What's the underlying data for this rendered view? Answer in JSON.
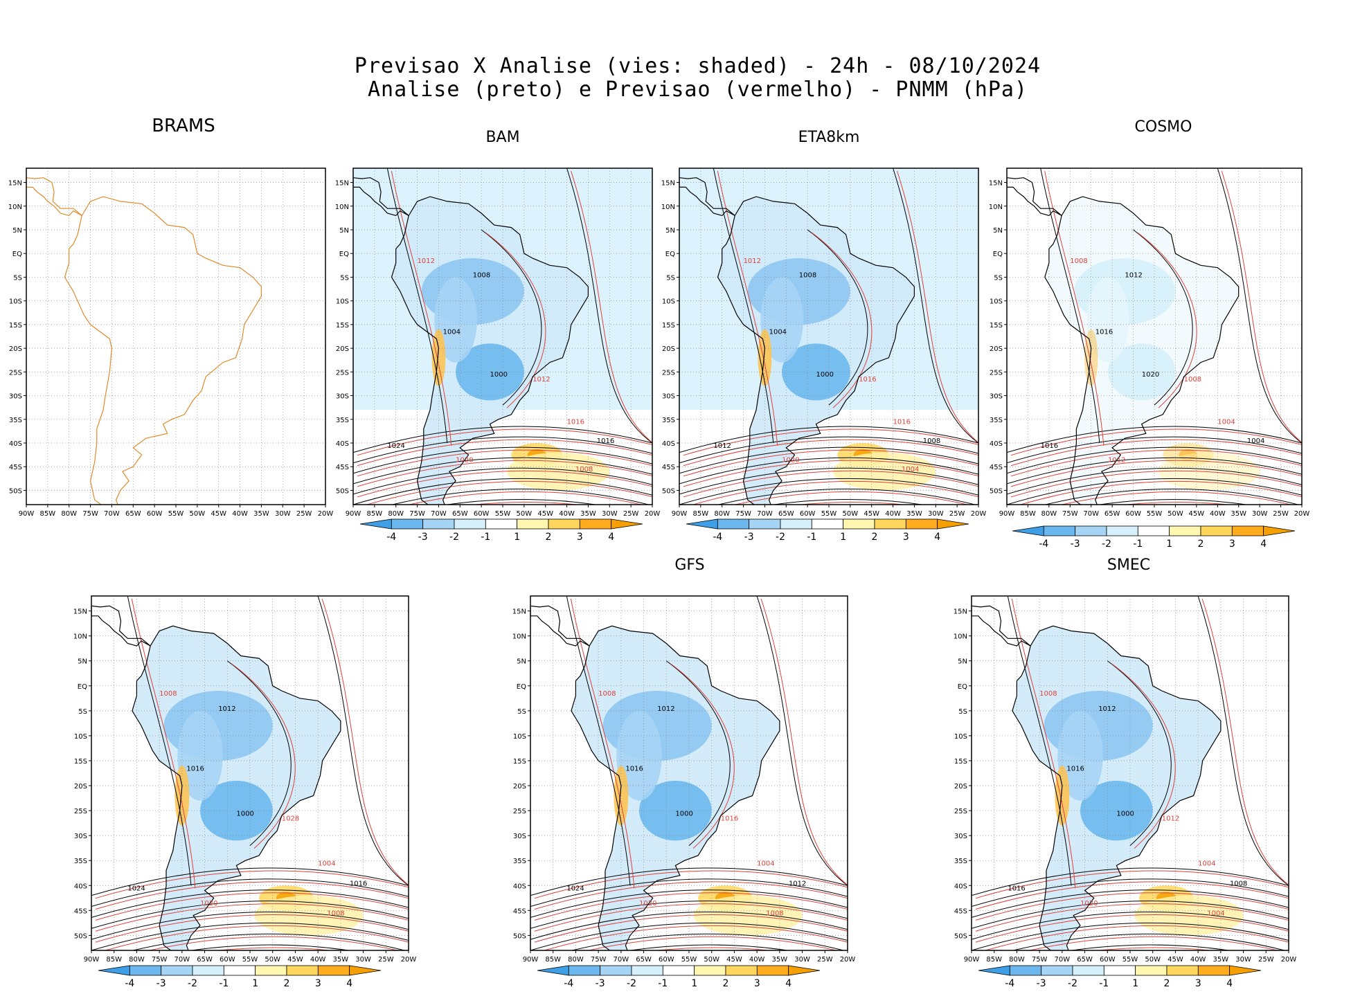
{
  "header": {
    "line1": "Previsao X Analise (vies: shaded) - 24h - 08/10/2024",
    "line2": "Analise (preto) e Previsao (vermelho) - PNMM (hPa)"
  },
  "lon_labels": [
    "90W",
    "85W",
    "80W",
    "75W",
    "70W",
    "65W",
    "60W",
    "55W",
    "50W",
    "45W",
    "40W",
    "35W",
    "30W",
    "25W",
    "20W"
  ],
  "lat_labels": [
    "15N",
    "10N",
    "5N",
    "EQ",
    "5S",
    "10S",
    "15S",
    "20S",
    "25S",
    "30S",
    "35S",
    "40S",
    "45S",
    "50S"
  ],
  "colorbar": {
    "labels": [
      "-4",
      "-3",
      "-2",
      "-1",
      "1",
      "2",
      "3",
      "4"
    ],
    "colors": [
      "#3f9fe6",
      "#6cb8ee",
      "#a6d4f5",
      "#d6f0fb",
      "#ffffff",
      "#fff6b0",
      "#ffd65c",
      "#ffab1e",
      "#f5a000"
    ]
  },
  "colors": {
    "analysis_contour": "#000000",
    "forecast_contour": "#e0403a",
    "coastline_brams": "#e08a2a",
    "negative_bias": "#7cc0f0",
    "positive_bias": "#ffd060"
  },
  "panels": [
    {
      "id": "brams",
      "title": "BRAMS",
      "bias": "none",
      "contour_labels": []
    },
    {
      "id": "bam",
      "title": "BAM",
      "bias": "strong",
      "contour_labels": [
        "1008",
        "1012",
        "1004",
        "1016",
        "1000",
        "1020",
        "1024",
        "1012",
        "1016",
        "1008"
      ]
    },
    {
      "id": "eta8km",
      "title": "ETA8km",
      "bias": "strong",
      "contour_labels": [
        "1008",
        "1012",
        "1004",
        "1016",
        "1000",
        "1020",
        "1012",
        "1016",
        "1008",
        "1004"
      ]
    },
    {
      "id": "cosmo",
      "title": "COSMO",
      "bias": "light",
      "contour_labels": [
        "1012",
        "1008",
        "1016",
        "1004",
        "1020",
        "1012",
        "1016",
        "1008",
        "1004"
      ]
    },
    {
      "id": "bottom-left",
      "title": "",
      "bias": "medium",
      "contour_labels": [
        "1012",
        "1008",
        "1016",
        "1004",
        "1000",
        "1020",
        "1024",
        "1028",
        "1016",
        "1008"
      ]
    },
    {
      "id": "gfs",
      "title": "GFS",
      "bias": "medium",
      "contour_labels": [
        "1012",
        "1008",
        "1016",
        "1004",
        "1000",
        "1020",
        "1024",
        "1016",
        "1012",
        "1008"
      ]
    },
    {
      "id": "smec",
      "title": "SMEC",
      "bias": "medium",
      "contour_labels": [
        "1012",
        "1008",
        "1016",
        "1004",
        "1000",
        "1020",
        "1016",
        "1012",
        "1008",
        "1004"
      ]
    }
  ]
}
